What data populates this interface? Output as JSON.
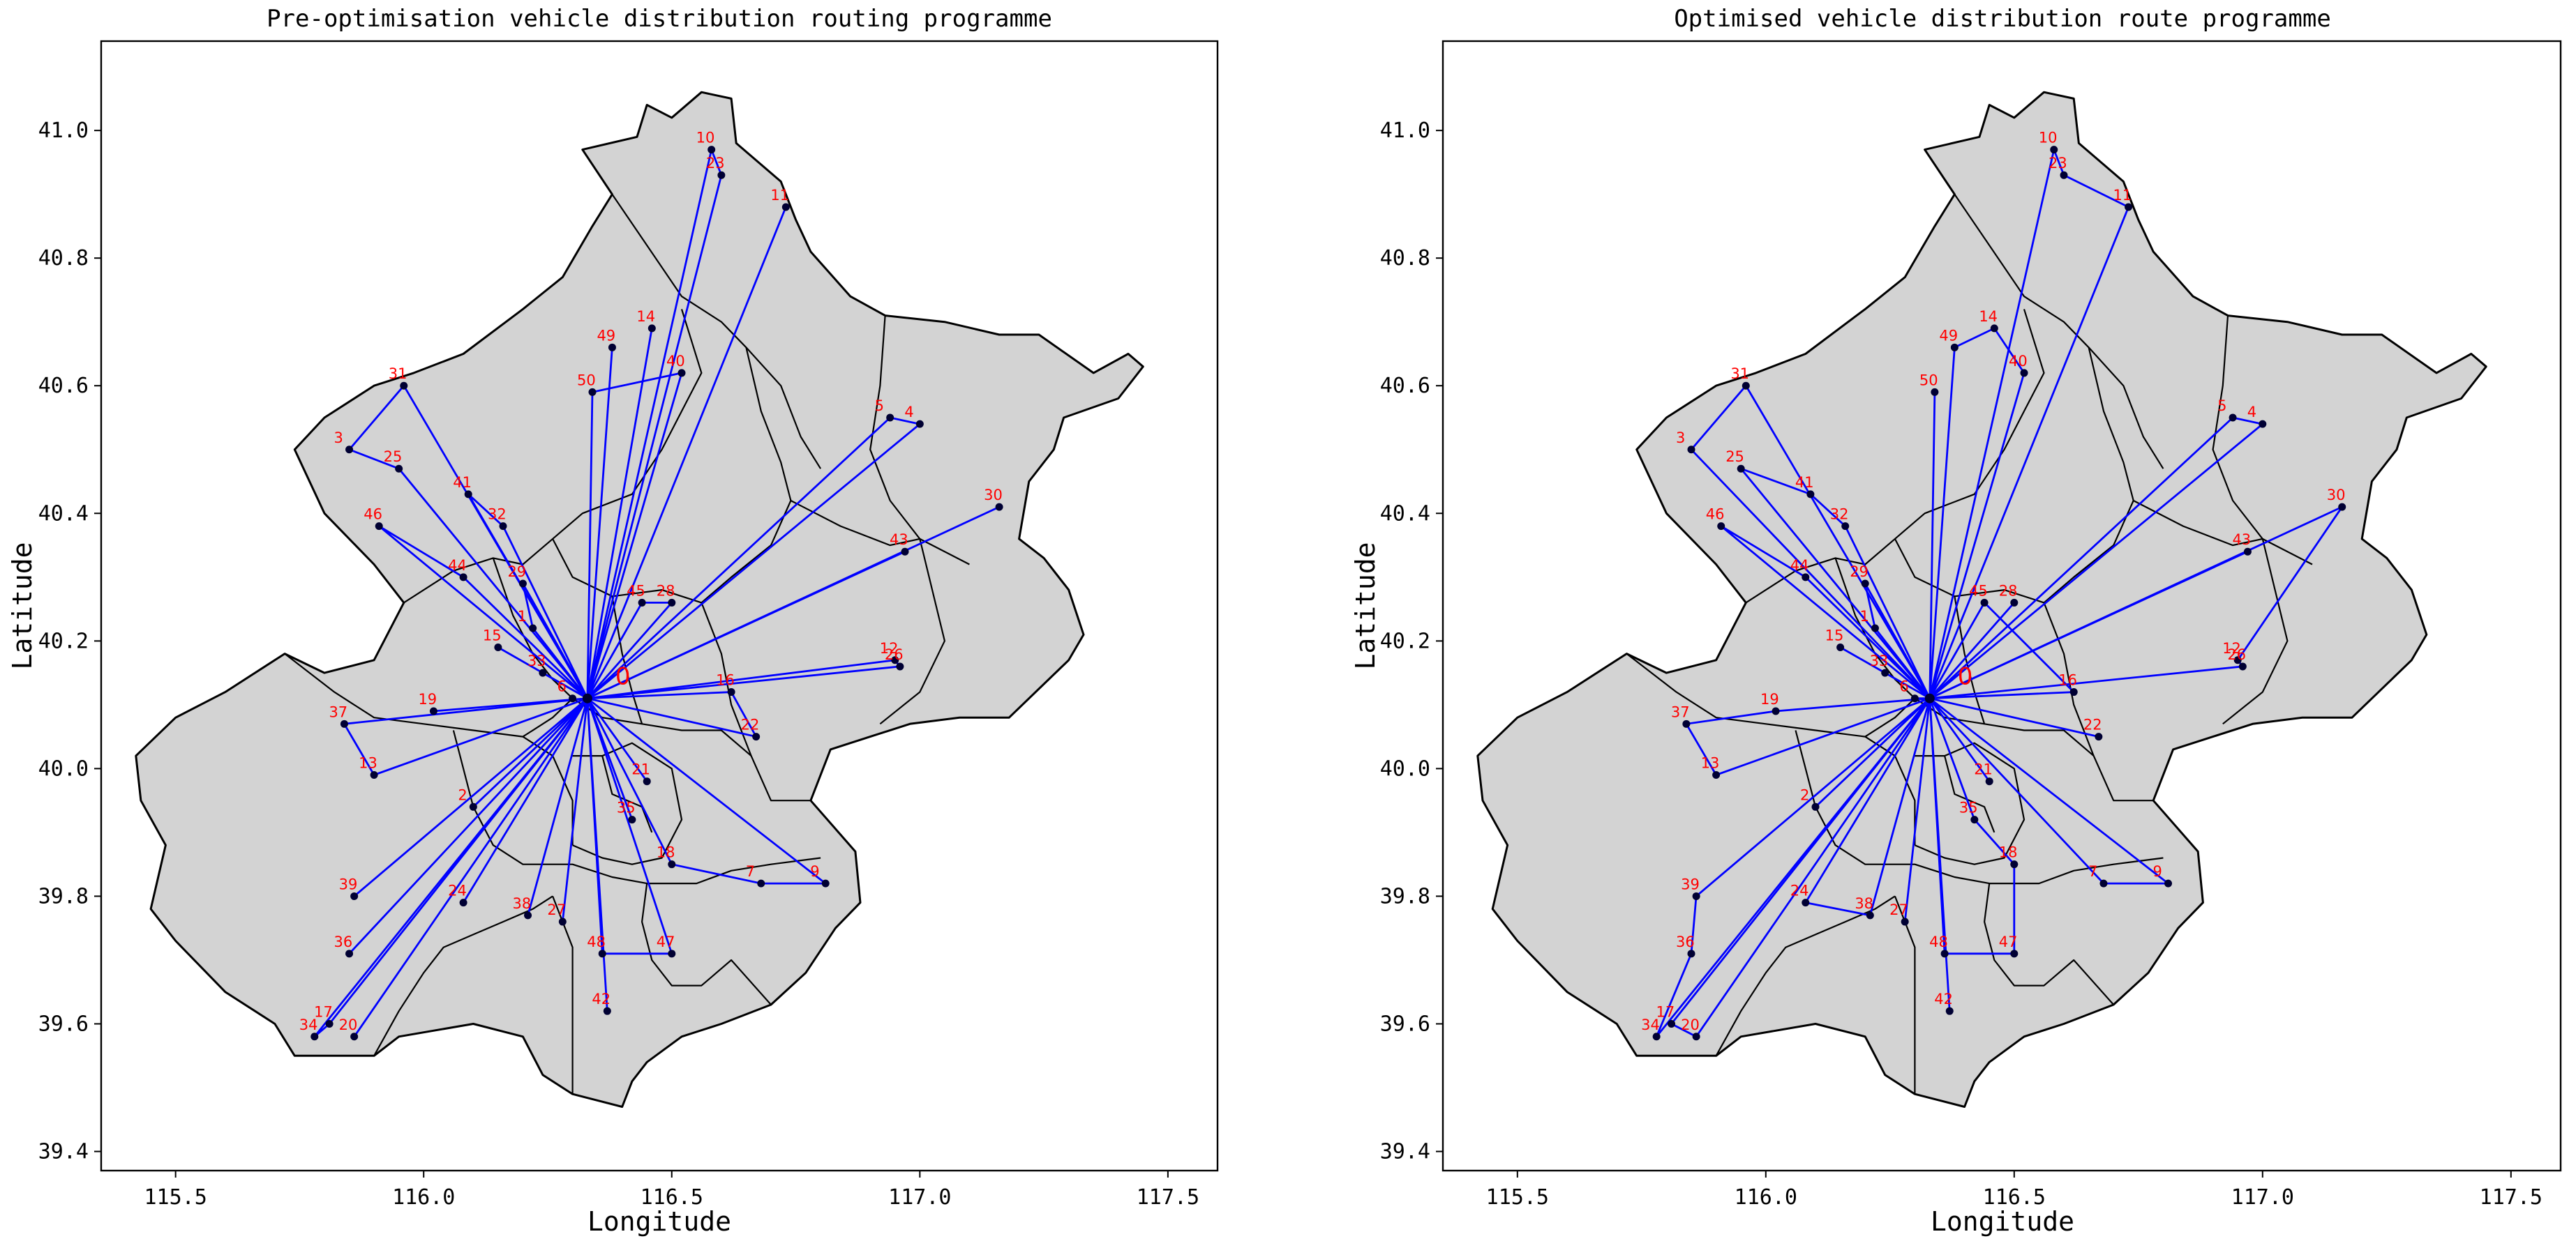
{
  "chart_data": [
    {
      "type": "scatter",
      "title": "Pre-optimisation vehicle distribution routing programme",
      "xlabel": "Longitude",
      "ylabel": "Latitude",
      "xlim": [
        115.35,
        117.6
      ],
      "ylim": [
        39.37,
        41.14
      ],
      "xticks": [
        "115.5",
        "116.0",
        "116.5",
        "117.0",
        "117.5"
      ],
      "yticks": [
        "39.4",
        "39.6",
        "39.8",
        "40.0",
        "40.2",
        "40.4",
        "40.6",
        "40.8",
        "41.0"
      ],
      "grid": false,
      "depot": {
        "id": "0",
        "lon": 116.33,
        "lat": 40.11
      },
      "routes": [
        [
          0,
          10,
          23,
          0
        ],
        [
          0,
          11,
          0
        ],
        [
          0,
          49,
          0
        ],
        [
          0,
          14,
          0
        ],
        [
          0,
          50,
          40,
          0
        ],
        [
          0,
          31,
          3,
          25,
          0
        ],
        [
          0,
          41,
          32,
          0
        ],
        [
          0,
          46,
          44,
          0
        ],
        [
          0,
          29,
          1,
          0
        ],
        [
          0,
          15,
          0
        ],
        [
          0,
          33,
          0
        ],
        [
          0,
          45,
          28,
          0
        ],
        [
          0,
          5,
          4,
          0
        ],
        [
          0,
          30,
          0
        ],
        [
          0,
          43,
          0
        ],
        [
          0,
          12,
          26,
          0
        ],
        [
          0,
          16,
          22,
          0
        ],
        [
          0,
          19,
          0
        ],
        [
          0,
          37,
          13,
          0
        ],
        [
          0,
          21,
          0
        ],
        [
          0,
          35,
          0
        ],
        [
          0,
          18,
          7,
          9,
          0
        ],
        [
          0,
          2,
          0
        ],
        [
          0,
          39,
          0
        ],
        [
          0,
          36,
          0
        ],
        [
          0,
          24,
          0
        ],
        [
          0,
          38,
          0
        ],
        [
          0,
          27,
          0
        ],
        [
          0,
          48,
          47,
          0
        ],
        [
          0,
          42,
          0
        ],
        [
          0,
          17,
          34,
          0
        ],
        [
          0,
          20,
          0
        ]
      ]
    },
    {
      "type": "scatter",
      "title": "Optimised vehicle distribution route programme",
      "xlabel": "Longitude",
      "ylabel": "Latitude",
      "xlim": [
        115.35,
        117.6
      ],
      "ylim": [
        39.37,
        41.14
      ],
      "xticks": [
        "115.5",
        "116.0",
        "116.5",
        "117.0",
        "117.5"
      ],
      "yticks": [
        "39.4",
        "39.6",
        "39.8",
        "40.0",
        "40.2",
        "40.4",
        "40.6",
        "40.8",
        "41.0"
      ],
      "grid": false,
      "depot": {
        "id": "0",
        "lon": 116.33,
        "lat": 40.11
      },
      "routes": [
        [
          0,
          10,
          23,
          11,
          0
        ],
        [
          0,
          49,
          14,
          40,
          0
        ],
        [
          0,
          50,
          0
        ],
        [
          0,
          31,
          3,
          0
        ],
        [
          0,
          25,
          41,
          32,
          0
        ],
        [
          0,
          46,
          44,
          0
        ],
        [
          0,
          29,
          1,
          0
        ],
        [
          0,
          15,
          33,
          0
        ],
        [
          0,
          6,
          0
        ],
        [
          0,
          45,
          16,
          0
        ],
        [
          0,
          28,
          0
        ],
        [
          0,
          5,
          4,
          0
        ],
        [
          0,
          43,
          0
        ],
        [
          0,
          30,
          12,
          26,
          0
        ],
        [
          0,
          22,
          0
        ],
        [
          0,
          19,
          37,
          13,
          0
        ],
        [
          0,
          21,
          0
        ],
        [
          0,
          35,
          18,
          47,
          48,
          0
        ],
        [
          0,
          7,
          9,
          0
        ],
        [
          0,
          2,
          0
        ],
        [
          0,
          39,
          36,
          34,
          0
        ],
        [
          0,
          17,
          20,
          0
        ],
        [
          0,
          24,
          38,
          0
        ],
        [
          0,
          27,
          0
        ],
        [
          0,
          42,
          0
        ]
      ]
    }
  ],
  "nodes": [
    {
      "id": "1",
      "lon": 116.22,
      "lat": 40.22
    },
    {
      "id": "2",
      "lon": 116.1,
      "lat": 39.94
    },
    {
      "id": "3",
      "lon": 115.85,
      "lat": 40.5
    },
    {
      "id": "4",
      "lon": 117.0,
      "lat": 40.54
    },
    {
      "id": "5",
      "lon": 116.94,
      "lat": 40.55
    },
    {
      "id": "6",
      "lon": 116.3,
      "lat": 40.11
    },
    {
      "id": "7",
      "lon": 116.68,
      "lat": 39.82
    },
    {
      "id": "9",
      "lon": 116.81,
      "lat": 39.82
    },
    {
      "id": "10",
      "lon": 116.58,
      "lat": 40.97
    },
    {
      "id": "11",
      "lon": 116.73,
      "lat": 40.88
    },
    {
      "id": "12",
      "lon": 116.95,
      "lat": 40.17
    },
    {
      "id": "13",
      "lon": 115.9,
      "lat": 39.99
    },
    {
      "id": "14",
      "lon": 116.46,
      "lat": 40.69
    },
    {
      "id": "15",
      "lon": 116.15,
      "lat": 40.19
    },
    {
      "id": "16",
      "lon": 116.62,
      "lat": 40.12
    },
    {
      "id": "17",
      "lon": 115.81,
      "lat": 39.6
    },
    {
      "id": "18",
      "lon": 116.5,
      "lat": 39.85
    },
    {
      "id": "19",
      "lon": 116.02,
      "lat": 40.09
    },
    {
      "id": "20",
      "lon": 115.86,
      "lat": 39.58
    },
    {
      "id": "21",
      "lon": 116.45,
      "lat": 39.98
    },
    {
      "id": "22",
      "lon": 116.67,
      "lat": 40.05
    },
    {
      "id": "23",
      "lon": 116.6,
      "lat": 40.93
    },
    {
      "id": "24",
      "lon": 116.08,
      "lat": 39.79
    },
    {
      "id": "25",
      "lon": 115.95,
      "lat": 40.47
    },
    {
      "id": "26",
      "lon": 116.96,
      "lat": 40.16
    },
    {
      "id": "27",
      "lon": 116.28,
      "lat": 39.76
    },
    {
      "id": "28",
      "lon": 116.5,
      "lat": 40.26
    },
    {
      "id": "29",
      "lon": 116.2,
      "lat": 40.29
    },
    {
      "id": "30",
      "lon": 117.16,
      "lat": 40.41
    },
    {
      "id": "31",
      "lon": 115.96,
      "lat": 40.6
    },
    {
      "id": "32",
      "lon": 116.16,
      "lat": 40.38
    },
    {
      "id": "33",
      "lon": 116.24,
      "lat": 40.15
    },
    {
      "id": "34",
      "lon": 115.78,
      "lat": 39.58
    },
    {
      "id": "35",
      "lon": 116.42,
      "lat": 39.92
    },
    {
      "id": "36",
      "lon": 115.85,
      "lat": 39.71
    },
    {
      "id": "37",
      "lon": 115.84,
      "lat": 40.07
    },
    {
      "id": "38",
      "lon": 116.21,
      "lat": 39.77
    },
    {
      "id": "39",
      "lon": 115.86,
      "lat": 39.8
    },
    {
      "id": "40",
      "lon": 116.52,
      "lat": 40.62
    },
    {
      "id": "41",
      "lon": 116.09,
      "lat": 40.43
    },
    {
      "id": "42",
      "lon": 116.37,
      "lat": 39.62
    },
    {
      "id": "43",
      "lon": 116.97,
      "lat": 40.34
    },
    {
      "id": "44",
      "lon": 116.08,
      "lat": 40.3
    },
    {
      "id": "45",
      "lon": 116.44,
      "lat": 40.26
    },
    {
      "id": "46",
      "lon": 115.91,
      "lat": 40.38
    },
    {
      "id": "47",
      "lon": 116.5,
      "lat": 39.71
    },
    {
      "id": "48",
      "lon": 116.36,
      "lat": 39.71
    },
    {
      "id": "49",
      "lon": 116.38,
      "lat": 40.66
    },
    {
      "id": "50",
      "lon": 116.34,
      "lat": 40.59
    }
  ],
  "colors": {
    "route": "#0000ff",
    "label": "#ff0000",
    "point": "#000033",
    "land": "#d3d3d3",
    "border": "#000000"
  }
}
